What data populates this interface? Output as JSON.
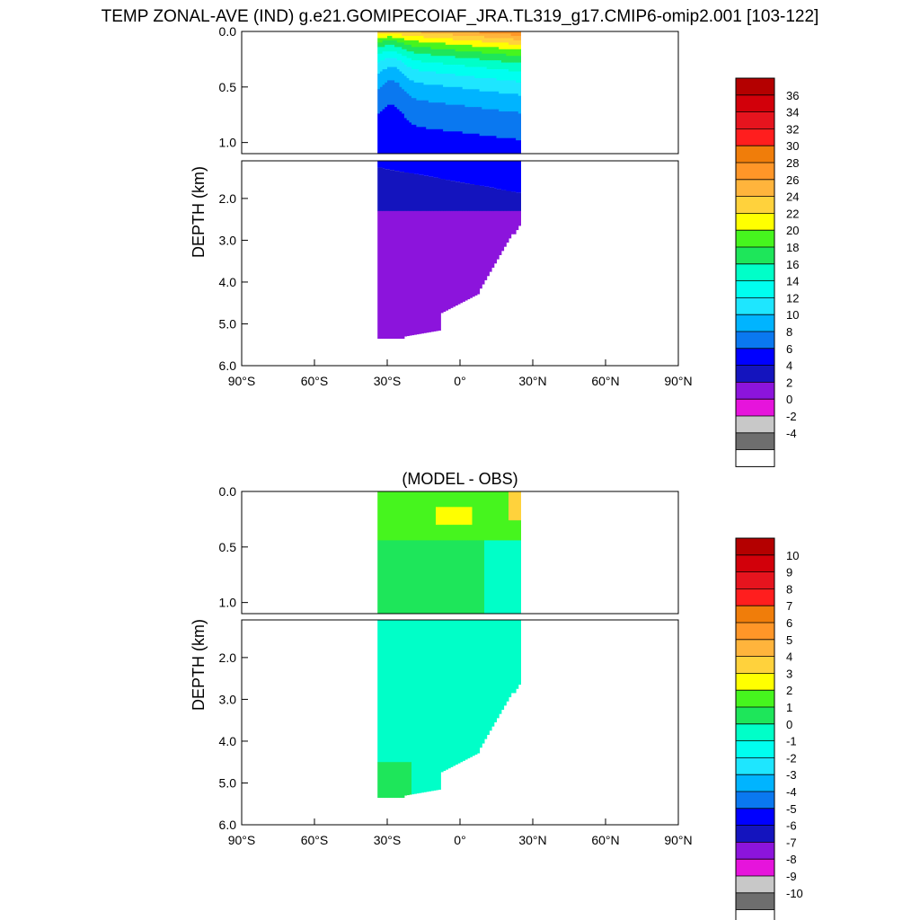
{
  "figure": {
    "title": "TEMP ZONAL-AVE (IND) g.e21.GOMIPECOIAF_JRA.TL319_g17.CMIP6-omip2.001 [103-122]"
  },
  "chart_data": [
    {
      "type": "heatmap",
      "title": "",
      "ylabel": "DEPTH (km)",
      "xlabel": "",
      "x_range": [
        -90,
        90
      ],
      "y_range": [
        0,
        6
      ],
      "xticks": [
        "90°S",
        "60°S",
        "30°S",
        "0°",
        "30°N",
        "60°N",
        "90°N"
      ],
      "yticks_upper": [
        "0.0",
        "0.5",
        "1.0"
      ],
      "yticks_lower": [
        "2.0",
        "3.0",
        "4.0",
        "5.0",
        "6.0"
      ],
      "data_extent_lat": [
        -34,
        25
      ],
      "colorbar": {
        "labels": [
          "36",
          "34",
          "32",
          "30",
          "28",
          "26",
          "24",
          "22",
          "20",
          "18",
          "16",
          "14",
          "12",
          "10",
          "8",
          "6",
          "4",
          "2",
          "0",
          "-2",
          "-4"
        ],
        "colors": [
          "#b40000",
          "#d2000a",
          "#e6141e",
          "#ff1e1e",
          "#f07d0a",
          "#ff9628",
          "#ffb43c",
          "#ffd23c",
          "#ffff00",
          "#46f51e",
          "#1ee65a",
          "#00ffc8",
          "#00fff0",
          "#1ee6ff",
          "#00b4ff",
          "#0a78f0",
          "#0000ff",
          "#1414be",
          "#8c14dc",
          "#e614dc",
          "#c8c8c8",
          "#6e6e6e",
          "#ffffff"
        ]
      },
      "layers": [
        {
          "depth_km": [
            0.0,
            0.15
          ],
          "value_range": [
            22,
            28
          ]
        },
        {
          "depth_km": [
            0.15,
            0.3
          ],
          "value_range": [
            16,
            22
          ]
        },
        {
          "depth_km": [
            0.3,
            0.6
          ],
          "value_range": [
            10,
            16
          ]
        },
        {
          "depth_km": [
            0.6,
            0.9
          ],
          "value_range": [
            6,
            10
          ]
        },
        {
          "depth_km": [
            0.9,
            1.5
          ],
          "value_range": [
            4,
            6
          ]
        },
        {
          "depth_km": [
            1.5,
            2.4
          ],
          "value_range": [
            2,
            4
          ]
        },
        {
          "depth_km": [
            2.4,
            5.4
          ],
          "value_range": [
            0,
            2
          ]
        }
      ]
    },
    {
      "type": "heatmap",
      "title": "(MODEL - OBS)",
      "ylabel": "DEPTH (km)",
      "xlabel": "",
      "x_range": [
        -90,
        90
      ],
      "y_range": [
        0,
        6
      ],
      "xticks": [
        "90°S",
        "60°S",
        "30°S",
        "0°",
        "30°N",
        "60°N",
        "90°N"
      ],
      "yticks_upper": [
        "0.0",
        "0.5",
        "1.0"
      ],
      "yticks_lower": [
        "2.0",
        "3.0",
        "4.0",
        "5.0",
        "6.0"
      ],
      "data_extent_lat": [
        -34,
        25
      ],
      "colorbar": {
        "labels": [
          "10",
          "9",
          "8",
          "7",
          "6",
          "5",
          "4",
          "3",
          "2",
          "1",
          "0",
          "-1",
          "-2",
          "-3",
          "-4",
          "-5",
          "-6",
          "-7",
          "-8",
          "-9",
          "-10"
        ],
        "colors": [
          "#b40000",
          "#d2000a",
          "#e6141e",
          "#ff1e1e",
          "#f07d0a",
          "#ff9628",
          "#ffb43c",
          "#ffd23c",
          "#ffff00",
          "#46f51e",
          "#1ee65a",
          "#00ffc8",
          "#00fff0",
          "#1ee6ff",
          "#00b4ff",
          "#0a78f0",
          "#0000ff",
          "#1414be",
          "#8c14dc",
          "#e614dc",
          "#c8c8c8",
          "#6e6e6e",
          "#ffffff"
        ]
      },
      "dominant_value_range": [
        -1,
        0
      ],
      "near_surface_anomaly_range": [
        0,
        3
      ]
    }
  ]
}
